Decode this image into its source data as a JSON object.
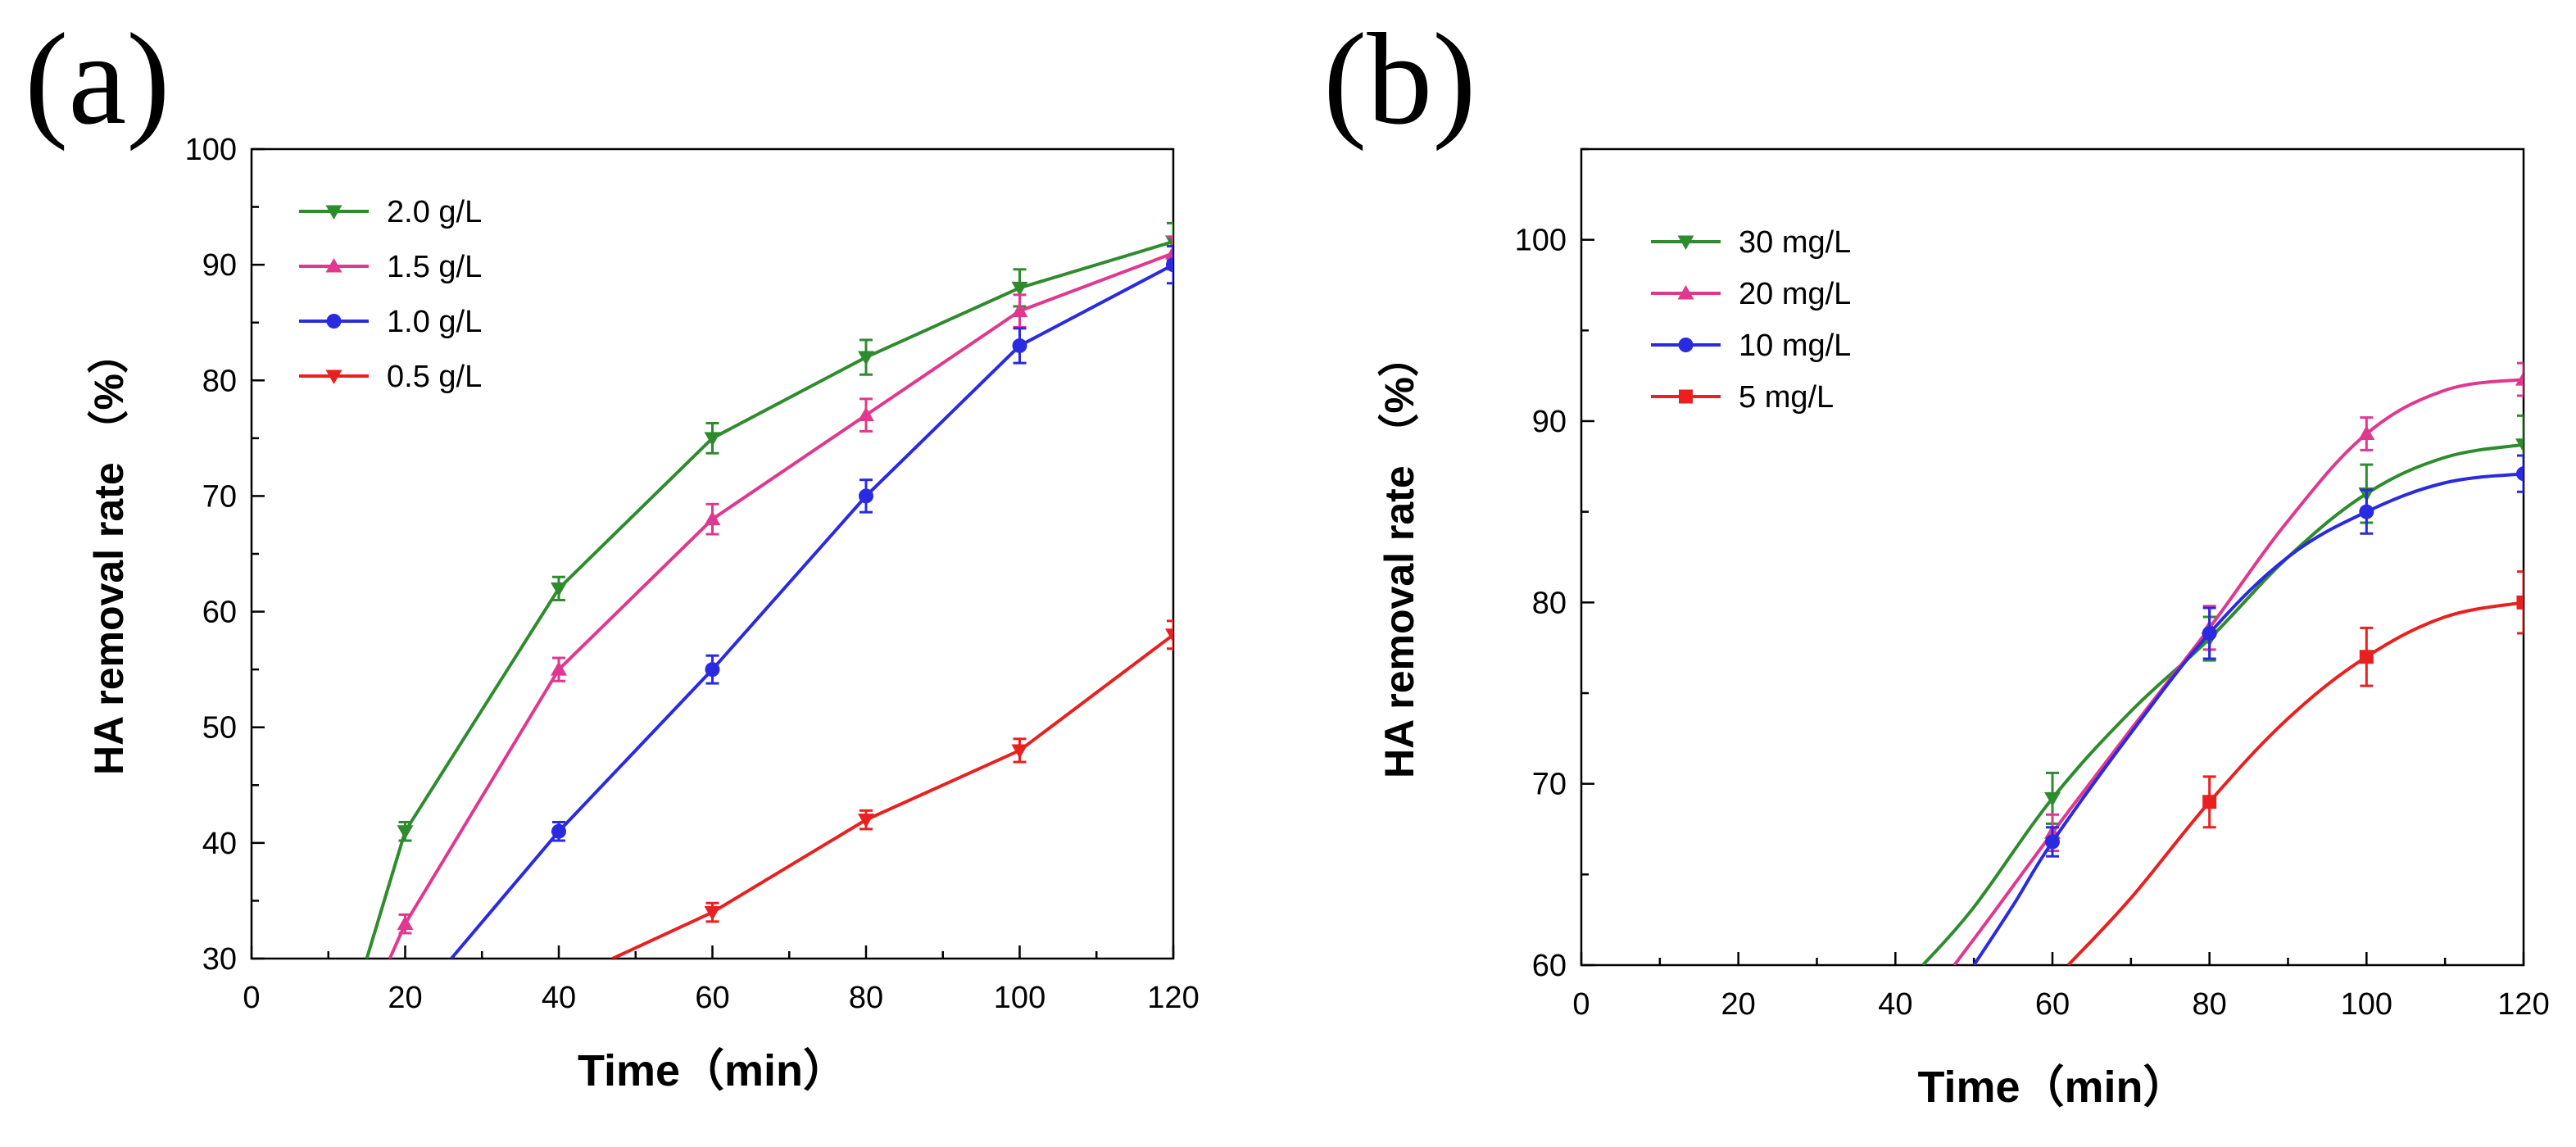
{
  "chart_data": [
    {
      "type": "line",
      "panel_label": "(a)",
      "xlabel": "Time（min）",
      "ylabel": "HA removal rate （%）",
      "xlim": [
        0,
        120
      ],
      "ylim": [
        30,
        100
      ],
      "x_ticks": [
        0,
        20,
        40,
        60,
        80,
        100,
        120
      ],
      "y_ticks": [
        30,
        40,
        50,
        60,
        70,
        80,
        90,
        100
      ],
      "legend_position": "top-left",
      "grid": false,
      "series": [
        {
          "name": "2.0 g/L",
          "color": "#2e8b2e",
          "marker": "triangle-down",
          "points": [
            [
              15,
              30
            ],
            [
              20,
              41
            ],
            [
              40,
              62
            ],
            [
              60,
              75
            ],
            [
              80,
              82
            ],
            [
              100,
              88
            ],
            [
              120,
              92
            ]
          ],
          "error": [
            0,
            0.8,
            1.0,
            1.3,
            1.5,
            1.6,
            1.6
          ]
        },
        {
          "name": "1.5 g/L",
          "color": "#e0388f",
          "marker": "triangle-up",
          "points": [
            [
              18,
              30
            ],
            [
              20,
              33
            ],
            [
              40,
              55
            ],
            [
              60,
              68
            ],
            [
              80,
              77
            ],
            [
              100,
              86
            ],
            [
              120,
              91
            ]
          ],
          "error": [
            0,
            0.8,
            1.0,
            1.3,
            1.4,
            1.4,
            1.4
          ]
        },
        {
          "name": "1.0 g/L",
          "color": "#2a2ae0",
          "marker": "circle",
          "points": [
            [
              26,
              30
            ],
            [
              40,
              41
            ],
            [
              60,
              55
            ],
            [
              80,
              70
            ],
            [
              100,
              83
            ],
            [
              120,
              90
            ]
          ],
          "error": [
            0,
            0.8,
            1.2,
            1.4,
            1.5,
            1.6
          ]
        },
        {
          "name": "0.5 g/L",
          "color": "#e82020",
          "marker": "triangle-down",
          "points": [
            [
              47,
              30
            ],
            [
              60,
              34
            ],
            [
              80,
              42
            ],
            [
              100,
              48
            ],
            [
              120,
              58
            ]
          ],
          "error": [
            0,
            0.8,
            0.8,
            1.0,
            1.2
          ]
        }
      ]
    },
    {
      "type": "line",
      "panel_label": "(b)",
      "xlabel": "Time（min）",
      "ylabel": "HA removal rate （%）",
      "xlim": [
        0,
        120
      ],
      "ylim": [
        60,
        105
      ],
      "x_ticks": [
        0,
        20,
        40,
        60,
        80,
        100,
        120
      ],
      "y_ticks": [
        60,
        70,
        80,
        90,
        100
      ],
      "legend_position": "top-left",
      "grid": false,
      "series": [
        {
          "name": "30 mg/L",
          "color": "#2e8b2e",
          "marker": "triangle-down",
          "points": [
            [
              43.5,
              60
            ],
            [
              50,
              63.2
            ],
            [
              60,
              69.2
            ],
            [
              70,
              74
            ],
            [
              80,
              78
            ],
            [
              90,
              82.5
            ],
            [
              100,
              86
            ],
            [
              110,
              88
            ],
            [
              120,
              88.7
            ]
          ],
          "error": [
            0,
            0,
            1.4,
            0,
            1.2,
            0,
            1.6,
            0,
            1.6
          ]
        },
        {
          "name": "20 mg/L",
          "color": "#e0388f",
          "marker": "triangle-up",
          "points": [
            [
              47.5,
              60
            ],
            [
              52,
              62.6
            ],
            [
              60,
              67.3
            ],
            [
              70,
              73
            ],
            [
              80,
              78.6
            ],
            [
              90,
              84.5
            ],
            [
              100,
              89.3
            ],
            [
              110,
              91.7
            ],
            [
              120,
              92.3
            ]
          ],
          "error": [
            0,
            0,
            1.0,
            0,
            1.2,
            0,
            0.9,
            0,
            0.9
          ]
        },
        {
          "name": "10 mg/L",
          "color": "#2a2ae0",
          "marker": "circle",
          "points": [
            [
              50,
              60
            ],
            [
              55,
              63.3
            ],
            [
              60,
              66.8
            ],
            [
              70,
              72.8
            ],
            [
              80,
              78.3
            ],
            [
              90,
              82.5
            ],
            [
              100,
              85
            ],
            [
              110,
              86.6
            ],
            [
              120,
              87.1
            ]
          ],
          "error": [
            0,
            0,
            0.8,
            0,
            1.4,
            0,
            1.2,
            0,
            1.0
          ]
        },
        {
          "name": "5 mg/L",
          "color": "#e82020",
          "marker": "square",
          "points": [
            [
              62,
              60
            ],
            [
              70,
              63.7
            ],
            [
              80,
              69
            ],
            [
              90,
              73.6
            ],
            [
              100,
              77
            ],
            [
              110,
              79.2
            ],
            [
              120,
              80
            ]
          ],
          "error": [
            0,
            0,
            1.4,
            0,
            1.6,
            0,
            1.7
          ]
        }
      ]
    }
  ]
}
